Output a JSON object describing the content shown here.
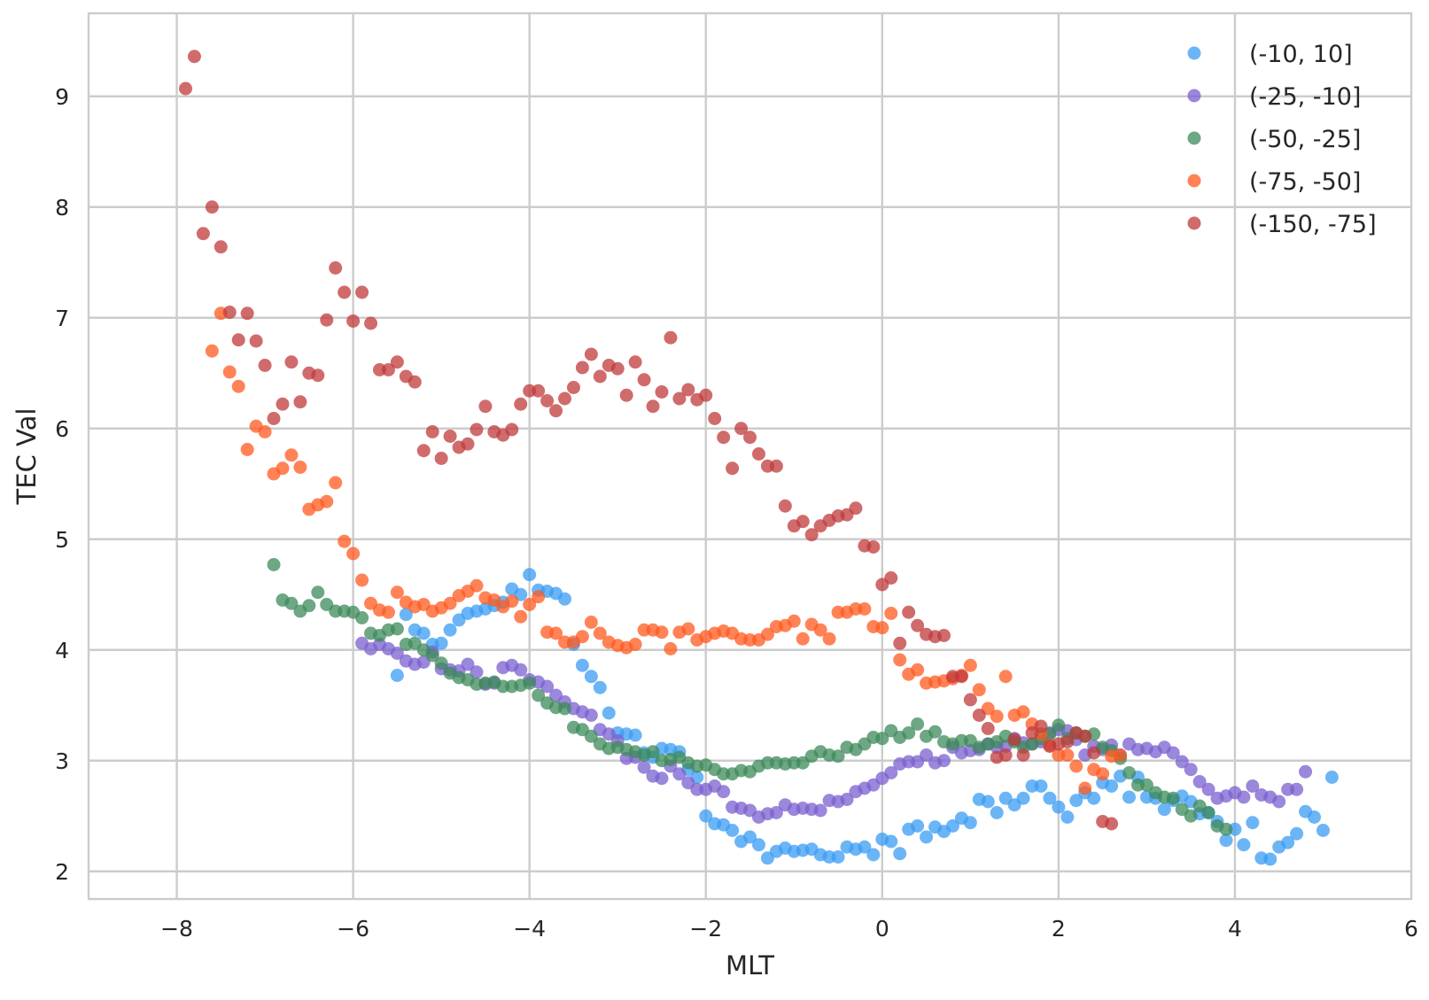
{
  "chart_data": {
    "type": "scatter",
    "xlabel": "MLT",
    "ylabel": "TEC Val",
    "xlim": [
      -9,
      6
    ],
    "ylim": [
      1.75,
      9.75
    ],
    "xticks": [
      -8,
      -6,
      -4,
      -2,
      0,
      2,
      4,
      6
    ],
    "xtick_labels": [
      "−8",
      "−6",
      "−4",
      "−2",
      "0",
      "2",
      "4",
      "6"
    ],
    "yticks": [
      2,
      3,
      4,
      5,
      6,
      7,
      8,
      9
    ],
    "ytick_labels": [
      "2",
      "3",
      "4",
      "5",
      "6",
      "7",
      "8",
      "9"
    ],
    "grid": true,
    "legend_position": "top-right",
    "series": [
      {
        "name": "(-10, 10]",
        "color": "#3a9cf4",
        "x": [
          -5.5,
          -5.4,
          -5.3,
          -5.2,
          -5.1,
          -5.0,
          -4.9,
          -4.8,
          -4.7,
          -4.6,
          -4.5,
          -4.4,
          -4.3,
          -4.2,
          -4.1,
          -4.0,
          -3.9,
          -3.8,
          -3.7,
          -3.6,
          -3.5,
          -3.4,
          -3.3,
          -3.2,
          -3.1,
          -3.0,
          -2.9,
          -2.8,
          -2.7,
          -2.6,
          -2.5,
          -2.4,
          -2.3,
          -2.2,
          -2.1,
          -2.0,
          -1.9,
          -1.8,
          -1.7,
          -1.6,
          -1.5,
          -1.4,
          -1.3,
          -1.2,
          -1.1,
          -1.0,
          -0.9,
          -0.8,
          -0.7,
          -0.6,
          -0.5,
          -0.4,
          -0.3,
          -0.2,
          -0.1,
          0.0,
          0.1,
          0.2,
          0.3,
          0.4,
          0.5,
          0.6,
          0.7,
          0.8,
          0.9,
          1.0,
          1.1,
          1.2,
          1.3,
          1.4,
          1.5,
          1.6,
          1.7,
          1.8,
          1.9,
          2.0,
          2.1,
          2.2,
          2.3,
          2.4,
          2.5,
          2.6,
          2.7,
          2.8,
          2.9,
          3.0,
          3.1,
          3.2,
          3.3,
          3.4,
          3.5,
          3.6,
          3.7,
          3.8,
          3.9,
          4.0,
          4.1,
          4.2,
          4.3,
          4.4,
          4.5,
          4.6,
          4.7,
          4.8,
          4.9,
          5.0,
          5.1
        ],
        "y": [
          3.77,
          4.32,
          4.18,
          4.15,
          4.05,
          4.06,
          4.18,
          4.27,
          4.33,
          4.35,
          4.37,
          4.4,
          4.43,
          4.55,
          4.5,
          4.68,
          4.54,
          4.53,
          4.51,
          4.46,
          4.05,
          3.86,
          3.76,
          3.66,
          3.43,
          3.25,
          3.24,
          3.23,
          3.07,
          3.03,
          3.11,
          3.1,
          3.08,
          2.92,
          2.85,
          2.5,
          2.43,
          2.42,
          2.37,
          2.27,
          2.31,
          2.24,
          2.12,
          2.18,
          2.21,
          2.18,
          2.19,
          2.2,
          2.15,
          2.13,
          2.13,
          2.22,
          2.2,
          2.22,
          2.15,
          2.29,
          2.27,
          2.16,
          2.38,
          2.41,
          2.31,
          2.4,
          2.36,
          2.41,
          2.48,
          2.44,
          2.65,
          2.63,
          2.53,
          2.66,
          2.6,
          2.66,
          2.77,
          2.77,
          2.66,
          2.58,
          2.49,
          2.64,
          2.71,
          2.66,
          2.8,
          2.77,
          2.86,
          2.67,
          2.85,
          2.67,
          2.66,
          2.56,
          2.64,
          2.68,
          2.63,
          2.52,
          2.53,
          2.45,
          2.28,
          2.38,
          2.24,
          2.44,
          2.12,
          2.11,
          2.22,
          2.26,
          2.34,
          2.54,
          2.49,
          2.37,
          2.85
        ]
      },
      {
        "name": "(-25, -10]",
        "color": "#7a5fcf",
        "x": [
          -5.9,
          -5.8,
          -5.7,
          -5.6,
          -5.5,
          -5.4,
          -5.3,
          -5.2,
          -5.1,
          -5.0,
          -4.9,
          -4.8,
          -4.7,
          -4.6,
          -4.5,
          -4.4,
          -4.3,
          -4.2,
          -4.1,
          -4.0,
          -3.9,
          -3.8,
          -3.7,
          -3.6,
          -3.5,
          -3.4,
          -3.3,
          -3.2,
          -3.1,
          -3.0,
          -2.9,
          -2.8,
          -2.7,
          -2.6,
          -2.5,
          -2.4,
          -2.3,
          -2.2,
          -2.1,
          -2.0,
          -1.9,
          -1.8,
          -1.7,
          -1.6,
          -1.5,
          -1.4,
          -1.3,
          -1.2,
          -1.1,
          -1.0,
          -0.9,
          -0.8,
          -0.7,
          -0.6,
          -0.5,
          -0.4,
          -0.3,
          -0.2,
          -0.1,
          0.0,
          0.1,
          0.2,
          0.3,
          0.4,
          0.5,
          0.6,
          0.7,
          0.8,
          0.9,
          1.0,
          1.1,
          1.2,
          1.3,
          1.4,
          1.5,
          1.6,
          1.7,
          1.8,
          1.9,
          2.0,
          2.1,
          2.2,
          2.3,
          2.4,
          2.5,
          2.6,
          2.7,
          2.8,
          2.9,
          3.0,
          3.1,
          3.2,
          3.3,
          3.4,
          3.5,
          3.6,
          3.7,
          3.8,
          3.9,
          4.0,
          4.1,
          4.2,
          4.3,
          4.4,
          4.5,
          4.6,
          4.7,
          4.8
        ],
        "y": [
          4.06,
          4.01,
          4.05,
          4.01,
          3.97,
          3.9,
          3.87,
          3.89,
          3.98,
          3.83,
          3.82,
          3.81,
          3.87,
          3.8,
          3.69,
          3.7,
          3.84,
          3.86,
          3.82,
          3.73,
          3.71,
          3.67,
          3.59,
          3.53,
          3.47,
          3.44,
          3.41,
          3.28,
          3.24,
          3.18,
          3.02,
          3.03,
          2.94,
          2.86,
          2.84,
          2.95,
          2.88,
          2.8,
          2.74,
          2.74,
          2.77,
          2.72,
          2.58,
          2.57,
          2.55,
          2.49,
          2.52,
          2.53,
          2.6,
          2.56,
          2.57,
          2.56,
          2.55,
          2.64,
          2.63,
          2.65,
          2.72,
          2.75,
          2.78,
          2.84,
          2.89,
          2.97,
          2.99,
          2.99,
          3.05,
          2.98,
          3.0,
          3.12,
          3.07,
          3.09,
          3.1,
          3.15,
          3.12,
          3.13,
          3.2,
          3.16,
          3.15,
          3.17,
          3.25,
          3.28,
          3.27,
          3.19,
          3.05,
          3.13,
          3.1,
          3.14,
          3.05,
          3.15,
          3.1,
          3.11,
          3.08,
          3.12,
          3.07,
          2.99,
          2.92,
          2.81,
          2.74,
          2.66,
          2.68,
          2.71,
          2.67,
          2.77,
          2.69,
          2.67,
          2.63,
          2.74,
          2.74,
          2.9
        ]
      },
      {
        "name": "(-50, -25]",
        "color": "#3c8a59",
        "x": [
          -6.9,
          -6.8,
          -6.7,
          -6.6,
          -6.5,
          -6.4,
          -6.3,
          -6.2,
          -6.1,
          -6.0,
          -5.9,
          -5.8,
          -5.7,
          -5.6,
          -5.5,
          -5.4,
          -5.3,
          -5.2,
          -5.1,
          -5.0,
          -4.9,
          -4.8,
          -4.7,
          -4.6,
          -4.5,
          -4.4,
          -4.3,
          -4.2,
          -4.1,
          -4.0,
          -3.9,
          -3.8,
          -3.7,
          -3.6,
          -3.5,
          -3.4,
          -3.3,
          -3.2,
          -3.1,
          -3.0,
          -2.9,
          -2.8,
          -2.7,
          -2.6,
          -2.5,
          -2.4,
          -2.3,
          -2.2,
          -2.1,
          -2.0,
          -1.9,
          -1.8,
          -1.7,
          -1.6,
          -1.5,
          -1.4,
          -1.3,
          -1.2,
          -1.1,
          -1.0,
          -0.9,
          -0.8,
          -0.7,
          -0.6,
          -0.5,
          -0.4,
          -0.3,
          -0.2,
          -0.1,
          0.0,
          0.1,
          0.2,
          0.3,
          0.4,
          0.5,
          0.6,
          0.7,
          0.8,
          0.9,
          1.0,
          1.1,
          1.2,
          1.3,
          1.4,
          1.5,
          1.6,
          1.7,
          1.8,
          1.9,
          2.0,
          2.1,
          2.2,
          2.3,
          2.4,
          2.5,
          2.6,
          2.7,
          2.8,
          2.9,
          3.0,
          3.1,
          3.2,
          3.3,
          3.4,
          3.5,
          3.6,
          3.7,
          3.8,
          3.9
        ],
        "y": [
          4.77,
          4.45,
          4.42,
          4.35,
          4.4,
          4.52,
          4.41,
          4.35,
          4.35,
          4.34,
          4.29,
          4.15,
          4.13,
          4.18,
          4.19,
          4.05,
          4.06,
          4.0,
          3.95,
          3.88,
          3.79,
          3.75,
          3.73,
          3.69,
          3.7,
          3.71,
          3.67,
          3.67,
          3.68,
          3.7,
          3.59,
          3.52,
          3.48,
          3.47,
          3.3,
          3.28,
          3.22,
          3.15,
          3.11,
          3.12,
          3.1,
          3.08,
          3.05,
          3.08,
          3.0,
          3.01,
          3.03,
          2.98,
          2.95,
          2.96,
          2.92,
          2.88,
          2.88,
          2.91,
          2.9,
          2.95,
          2.98,
          2.98,
          2.97,
          2.98,
          2.98,
          3.04,
          3.08,
          3.05,
          3.04,
          3.12,
          3.1,
          3.15,
          3.21,
          3.2,
          3.27,
          3.21,
          3.25,
          3.33,
          3.22,
          3.26,
          3.17,
          3.15,
          3.18,
          3.18,
          3.12,
          3.15,
          3.17,
          3.22,
          3.17,
          3.12,
          3.15,
          3.2,
          3.24,
          3.32,
          3.2,
          3.25,
          3.22,
          3.24,
          3.12,
          3.09,
          3.02,
          2.89,
          2.78,
          2.78,
          2.71,
          2.67,
          2.66,
          2.56,
          2.5,
          2.59,
          2.53,
          2.41,
          2.38
        ]
      },
      {
        "name": "(-75, -50]",
        "color": "#ff5a1f",
        "x": [
          -7.6,
          -7.5,
          -7.4,
          -7.3,
          -7.2,
          -7.1,
          -7.0,
          -6.9,
          -6.8,
          -6.7,
          -6.6,
          -6.5,
          -6.4,
          -6.3,
          -6.2,
          -6.1,
          -6.0,
          -5.9,
          -5.8,
          -5.7,
          -5.6,
          -5.5,
          -5.4,
          -5.3,
          -5.2,
          -5.1,
          -5.0,
          -4.9,
          -4.8,
          -4.7,
          -4.6,
          -4.5,
          -4.4,
          -4.3,
          -4.2,
          -4.1,
          -4.0,
          -3.9,
          -3.8,
          -3.7,
          -3.6,
          -3.5,
          -3.4,
          -3.3,
          -3.2,
          -3.1,
          -3.0,
          -2.9,
          -2.8,
          -2.7,
          -2.6,
          -2.5,
          -2.4,
          -2.3,
          -2.2,
          -2.1,
          -2.0,
          -1.9,
          -1.8,
          -1.7,
          -1.6,
          -1.5,
          -1.4,
          -1.3,
          -1.2,
          -1.1,
          -1.0,
          -0.9,
          -0.8,
          -0.7,
          -0.6,
          -0.5,
          -0.4,
          -0.3,
          -0.2,
          -0.1,
          0.0,
          0.1,
          0.2,
          0.3,
          0.4,
          0.5,
          0.6,
          0.7,
          0.8,
          0.9,
          1.0,
          1.1,
          1.2,
          1.3,
          1.4,
          1.5,
          1.6,
          1.7,
          1.8,
          1.9,
          2.0,
          2.1,
          2.2,
          2.3,
          2.4,
          2.5,
          2.6,
          2.7
        ],
        "y": [
          6.7,
          7.04,
          6.51,
          6.38,
          5.81,
          6.02,
          5.97,
          5.59,
          5.64,
          5.76,
          5.65,
          5.27,
          5.31,
          5.34,
          5.51,
          4.98,
          4.87,
          4.63,
          4.42,
          4.36,
          4.34,
          4.52,
          4.43,
          4.39,
          4.41,
          4.35,
          4.38,
          4.42,
          4.49,
          4.53,
          4.58,
          4.47,
          4.45,
          4.39,
          4.44,
          4.3,
          4.41,
          4.48,
          4.16,
          4.15,
          4.07,
          4.07,
          4.12,
          4.25,
          4.15,
          4.07,
          4.04,
          4.02,
          4.05,
          4.18,
          4.18,
          4.16,
          4.01,
          4.16,
          4.19,
          4.09,
          4.12,
          4.15,
          4.17,
          4.15,
          4.1,
          4.09,
          4.09,
          4.14,
          4.21,
          4.22,
          4.26,
          4.1,
          4.23,
          4.18,
          4.1,
          4.34,
          4.34,
          4.37,
          4.37,
          4.21,
          4.2,
          4.33,
          3.91,
          3.78,
          3.82,
          3.7,
          3.71,
          3.72,
          3.74,
          3.77,
          3.86,
          3.64,
          3.47,
          3.4,
          3.76,
          3.41,
          3.44,
          3.33,
          3.24,
          3.14,
          3.05,
          3.05,
          2.95,
          2.75,
          2.92,
          2.88,
          3.04,
          3.05
        ]
      },
      {
        "name": "(-150, -75]",
        "color": "#c0393b",
        "x": [
          -7.9,
          -7.8,
          -7.7,
          -7.6,
          -7.5,
          -7.4,
          -7.3,
          -7.2,
          -7.1,
          -7.0,
          -6.9,
          -6.8,
          -6.7,
          -6.6,
          -6.5,
          -6.4,
          -6.3,
          -6.2,
          -6.1,
          -6.0,
          -5.9,
          -5.8,
          -5.7,
          -5.6,
          -5.5,
          -5.4,
          -5.3,
          -5.2,
          -5.1,
          -5.0,
          -4.9,
          -4.8,
          -4.7,
          -4.6,
          -4.5,
          -4.4,
          -4.3,
          -4.2,
          -4.1,
          -4.0,
          -3.9,
          -3.8,
          -3.7,
          -3.6,
          -3.5,
          -3.4,
          -3.3,
          -3.2,
          -3.1,
          -3.0,
          -2.9,
          -2.8,
          -2.7,
          -2.6,
          -2.5,
          -2.4,
          -2.3,
          -2.2,
          -2.1,
          -2.0,
          -1.9,
          -1.8,
          -1.7,
          -1.6,
          -1.5,
          -1.4,
          -1.3,
          -1.2,
          -1.1,
          -1.0,
          -0.9,
          -0.8,
          -0.7,
          -0.6,
          -0.5,
          -0.4,
          -0.3,
          -0.2,
          -0.1,
          0.0,
          0.1,
          0.2,
          0.3,
          0.4,
          0.5,
          0.6,
          0.7,
          0.8,
          0.9,
          1.0,
          1.1,
          1.2,
          1.3,
          1.4,
          1.5,
          1.6,
          1.7,
          1.8,
          1.9,
          2.0,
          2.1,
          2.2,
          2.3,
          2.4,
          2.5,
          2.6
        ],
        "y": [
          9.07,
          9.36,
          7.76,
          8.0,
          7.64,
          7.05,
          6.8,
          7.04,
          6.79,
          6.57,
          6.09,
          6.22,
          6.6,
          6.24,
          6.5,
          6.48,
          6.98,
          7.45,
          7.23,
          6.97,
          7.23,
          6.95,
          6.53,
          6.53,
          6.6,
          6.47,
          6.42,
          5.8,
          5.97,
          5.73,
          5.93,
          5.83,
          5.86,
          5.99,
          6.2,
          5.97,
          5.94,
          5.99,
          6.22,
          6.34,
          6.34,
          6.25,
          6.16,
          6.27,
          6.37,
          6.55,
          6.67,
          6.47,
          6.57,
          6.54,
          6.3,
          6.6,
          6.44,
          6.2,
          6.33,
          6.82,
          6.27,
          6.35,
          6.26,
          6.3,
          6.09,
          5.92,
          5.64,
          6.0,
          5.92,
          5.77,
          5.66,
          5.66,
          5.3,
          5.12,
          5.16,
          5.04,
          5.12,
          5.17,
          5.21,
          5.22,
          5.28,
          4.94,
          4.93,
          4.59,
          4.65,
          4.06,
          4.34,
          4.22,
          4.14,
          4.12,
          4.13,
          3.76,
          3.76,
          3.55,
          3.41,
          3.29,
          3.03,
          3.05,
          3.19,
          3.05,
          3.25,
          3.31,
          3.13,
          3.15,
          3.17,
          3.25,
          3.22,
          3.07,
          2.45,
          2.43
        ]
      }
    ]
  }
}
